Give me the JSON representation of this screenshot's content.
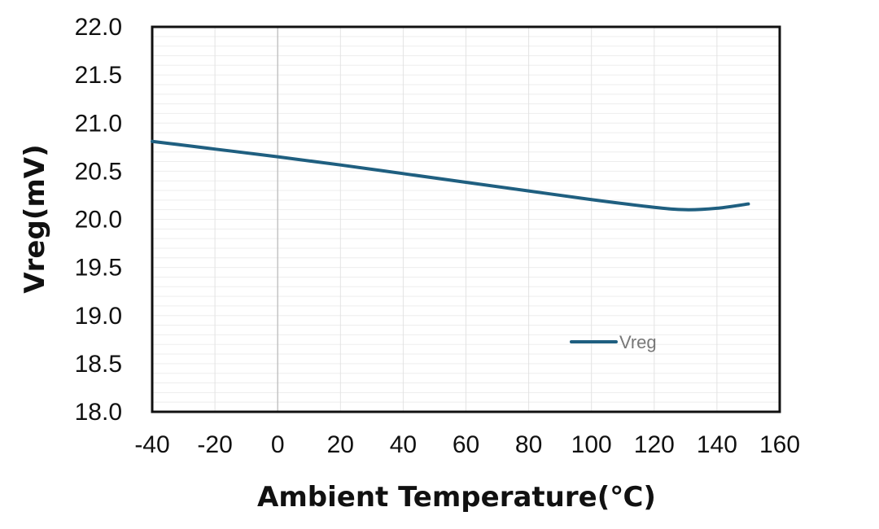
{
  "chart_data": {
    "type": "line",
    "title": "",
    "xlabel": "Ambient Temperature(℃)",
    "ylabel": "Vreg(mV)",
    "xlim": [
      -40,
      160
    ],
    "ylim": [
      18.0,
      22.0
    ],
    "x_ticks": [
      -40,
      -20,
      0,
      20,
      40,
      60,
      80,
      100,
      120,
      140,
      160
    ],
    "x_tick_labels": [
      "-40",
      "-20",
      "0",
      "20",
      "40",
      "60",
      "80",
      "100",
      "120",
      "140",
      "160"
    ],
    "y_ticks": [
      18.0,
      18.5,
      19.0,
      19.5,
      20.0,
      20.5,
      21.0,
      21.5,
      22.0
    ],
    "y_tick_labels": [
      "18.0",
      "18.5",
      "19.0",
      "19.5",
      "20.0",
      "20.5",
      "21.0",
      "21.5",
      "22.0"
    ],
    "grid": true,
    "legend": "inside-bottom-right",
    "series": [
      {
        "name": "Vreg",
        "color": "#1f5f80",
        "x": [
          -40,
          -20,
          0,
          20,
          40,
          60,
          80,
          100,
          120,
          130,
          140,
          150
        ],
        "y": [
          20.81,
          20.73,
          20.65,
          20.565,
          20.475,
          20.385,
          20.295,
          20.205,
          20.125,
          20.1,
          20.115,
          20.16
        ]
      }
    ]
  }
}
